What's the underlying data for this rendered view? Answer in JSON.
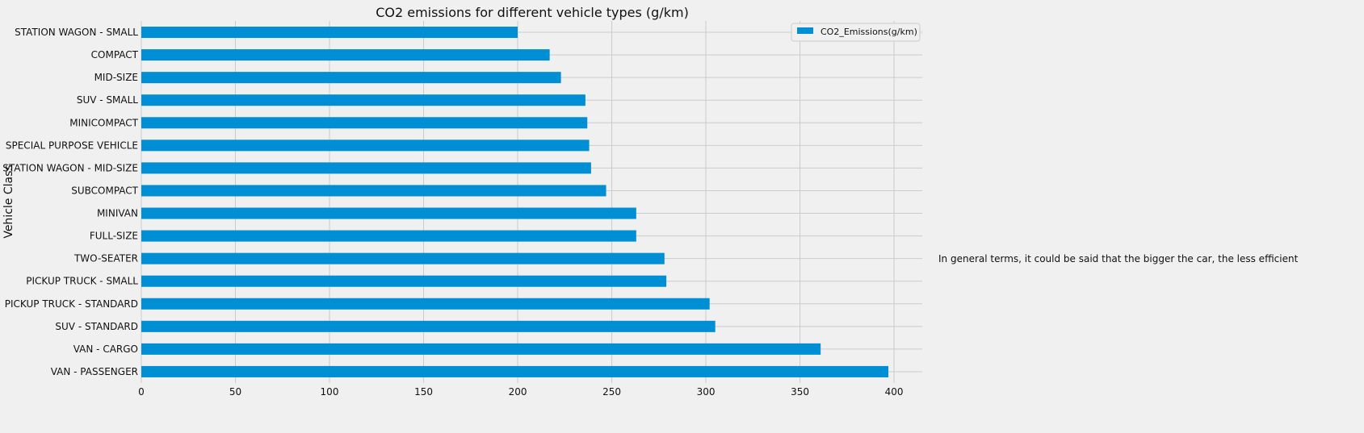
{
  "chart_data": {
    "type": "bar",
    "orientation": "horizontal",
    "title": "CO2 emissions for different vehicle types (g/km)",
    "ylabel": "Vehicle Class",
    "xlabel": "",
    "xlim": [
      0,
      415
    ],
    "xticks": [
      0,
      50,
      100,
      150,
      200,
      250,
      300,
      350,
      400
    ],
    "grid": true,
    "legend_position": "top-right",
    "categories": [
      "STATION WAGON - SMALL",
      "COMPACT",
      "MID-SIZE",
      "SUV - SMALL",
      "MINICOMPACT",
      "SPECIAL PURPOSE VEHICLE",
      "STATION WAGON - MID-SIZE",
      "SUBCOMPACT",
      "MINIVAN",
      "FULL-SIZE",
      "TWO-SEATER",
      "PICKUP TRUCK - SMALL",
      "PICKUP TRUCK - STANDARD",
      "SUV - STANDARD",
      "VAN - CARGO",
      "VAN - PASSENGER"
    ],
    "series": [
      {
        "name": "CO2_Emissions(g/km)",
        "color": "#008fd5",
        "values": [
          200,
          217,
          223,
          236,
          237,
          238,
          239,
          247,
          263,
          263,
          278,
          279,
          302,
          305,
          361,
          397
        ]
      }
    ],
    "annotations": [
      {
        "text": "In general terms, it could be said that the bigger the car, the less efficient"
      }
    ]
  }
}
